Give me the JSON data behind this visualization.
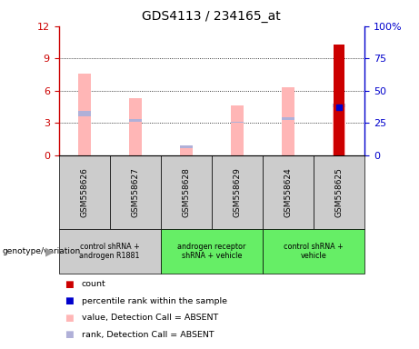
{
  "title": "GDS4113 / 234165_at",
  "samples": [
    "GSM558626",
    "GSM558627",
    "GSM558628",
    "GSM558629",
    "GSM558624",
    "GSM558625"
  ],
  "pink_bar_heights": [
    7.6,
    5.3,
    0.55,
    4.6,
    6.3,
    0.0
  ],
  "blue_seg_bottom": [
    3.6,
    3.1,
    0.65,
    3.0,
    3.3,
    4.5
  ],
  "blue_seg_top": [
    4.1,
    3.4,
    0.95,
    3.15,
    3.55,
    4.8
  ],
  "red_bar_height": [
    0.0,
    0.0,
    0.0,
    0.0,
    0.0,
    10.3
  ],
  "blue_dot_right": [
    0.0,
    0.0,
    0.0,
    0.0,
    0.0,
    37.5
  ],
  "ylim_left": [
    0,
    12
  ],
  "ylim_right": [
    0,
    100
  ],
  "yticks_left": [
    0,
    3,
    6,
    9,
    12
  ],
  "yticks_right": [
    0,
    25,
    50,
    75,
    100
  ],
  "ytick_labels_right": [
    "0",
    "25",
    "50",
    "75",
    "100%"
  ],
  "bar_width": 0.25,
  "pink_color": "#ffb6b6",
  "light_blue_color": "#b0b0d8",
  "red_color": "#cc0000",
  "blue_color": "#0000cc",
  "axis_left_color": "#cc0000",
  "axis_right_color": "#0000cc",
  "bg_label": "#cccccc",
  "bg_label_green": "#66ee66",
  "group_configs": [
    {
      "xmin": -0.5,
      "xmax": 1.5,
      "color": "#cccccc",
      "label": "control shRNA +\nandrogen R1881"
    },
    {
      "xmin": 1.5,
      "xmax": 3.5,
      "color": "#66ee66",
      "label": "androgen receptor\nshRNA + vehicle"
    },
    {
      "xmin": 3.5,
      "xmax": 5.5,
      "color": "#66ee66",
      "label": "control shRNA +\nvehicle"
    }
  ],
  "legend_items": [
    {
      "label": "count",
      "color": "#cc0000"
    },
    {
      "label": "percentile rank within the sample",
      "color": "#0000cc"
    },
    {
      "label": "value, Detection Call = ABSENT",
      "color": "#ffb6b6"
    },
    {
      "label": "rank, Detection Call = ABSENT",
      "color": "#b0b0d8"
    }
  ],
  "genotype_label": "genotype/variation"
}
